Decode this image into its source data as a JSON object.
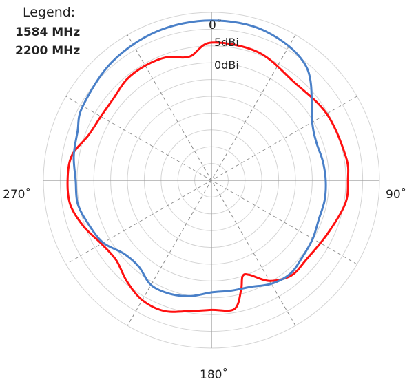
{
  "chart_data": {
    "type": "polar-line",
    "legend": {
      "title": "Legend:",
      "placement": "top-left"
    },
    "angle_labels": [
      "0˚",
      "90˚",
      "180˚",
      "270˚"
    ],
    "ring_labels": [
      "5dBi",
      "0dBi"
    ],
    "radial_unit": "dBi",
    "radial_range": [
      -20,
      5
    ],
    "ring_step": 2.5,
    "spoke_step_deg": 30,
    "grid": true,
    "series": [
      {
        "name": "1584 MHz",
        "color": "#ff1010",
        "theta": [
          0,
          20,
          40,
          60,
          80,
          90,
          100,
          115,
          130,
          140,
          150,
          158,
          162,
          165,
          170,
          180,
          190,
          200,
          210,
          220,
          230,
          240,
          250,
          260,
          270,
          280,
          290,
          300,
          310,
          320,
          330,
          340,
          350
        ],
        "r": [
          0.5,
          0.3,
          -0.9,
          -0.2,
          0.3,
          0.3,
          0.2,
          -1.0,
          -1.6,
          -1.5,
          -2.7,
          -4.8,
          -5.0,
          -3.0,
          -0.5,
          -0.7,
          -0.2,
          0.7,
          0.6,
          -0.4,
          -1.5,
          -1.1,
          0.2,
          1.3,
          1.4,
          1.1,
          -0.5,
          -1.0,
          -1.0,
          -0.4,
          -0.3,
          -0.5,
          -1.3
        ]
      },
      {
        "name": "2200 MHz",
        "color": "#4a80c8",
        "theta": [
          0,
          20,
          40,
          60,
          70,
          80,
          90,
          100,
          110,
          120,
          130,
          140,
          150,
          160,
          170,
          180,
          190,
          200,
          210,
          220,
          230,
          240,
          250,
          260,
          270,
          280,
          290,
          300,
          320,
          340
        ],
        "r": [
          3.8,
          3.6,
          2.0,
          -2.7,
          -3.4,
          -3.2,
          -3.0,
          -2.9,
          -3.0,
          -2.6,
          -2.3,
          -1.8,
          -2.2,
          -3.1,
          -3.3,
          -3.3,
          -2.5,
          -2.0,
          -2.0,
          -3.2,
          -3.0,
          -1.4,
          -0.6,
          0.2,
          0.2,
          0.8,
          1.2,
          2.1,
          3.0,
          3.6
        ]
      }
    ]
  }
}
